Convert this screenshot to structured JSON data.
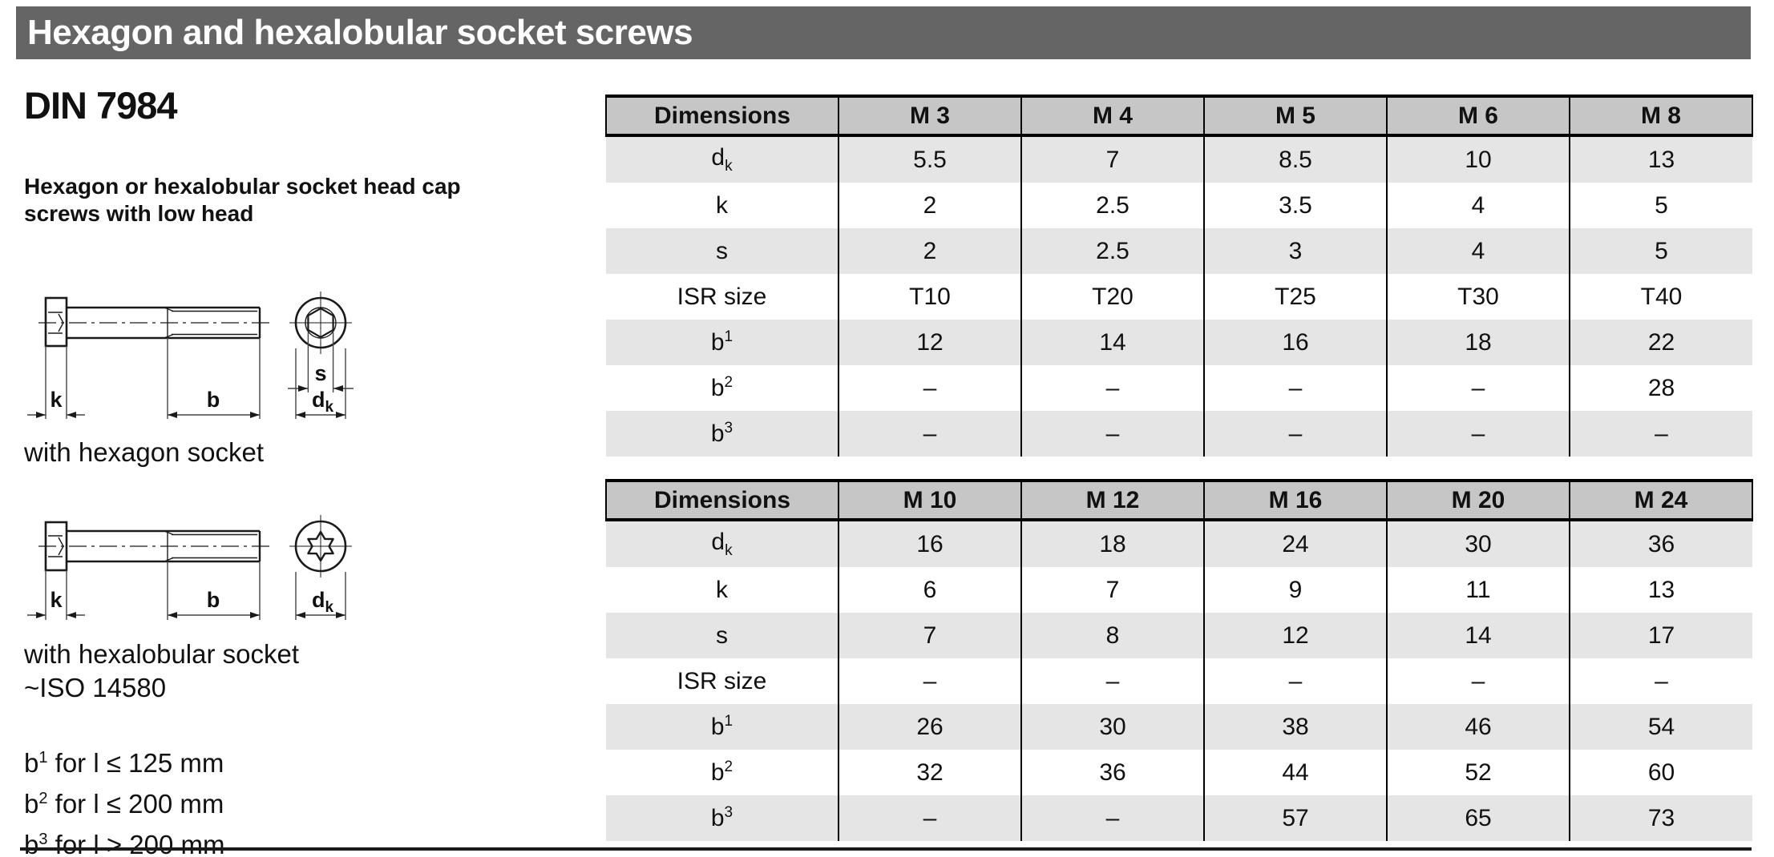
{
  "header": {
    "title": "Hexagon and hexalobular socket screws"
  },
  "left": {
    "standard": "DIN 7984",
    "subtitle_lines": [
      "Hexagon or hexalobular socket head cap",
      "screws with low head"
    ],
    "caption_hex": "with hexagon socket",
    "caption_torx": "with hexalobular socket",
    "caption_torx_iso": "~ISO 14580",
    "footnotes": [
      {
        "base": "b",
        "sup": "1",
        "rest": " for l ≤ 125 mm"
      },
      {
        "base": "b",
        "sup": "2",
        "rest": " for l ≤ 200 mm"
      },
      {
        "base": "b",
        "sup": "3",
        "rest": " for l > 200 mm"
      }
    ]
  },
  "drawing_labels": {
    "k": "k",
    "b": "b",
    "s": "s",
    "dk_base": "d",
    "dk_sub": "k"
  },
  "colors": {
    "header_bar": "#656565",
    "table_header_bg": "#c6c6c6",
    "row_stripe_bg": "#e5e5e5"
  },
  "tables": [
    {
      "columns": [
        "Dimensions",
        "M 3",
        "M 4",
        "M 5",
        "M 6",
        "M 8"
      ],
      "rows": [
        {
          "label": "d",
          "sub": "k",
          "sup": "",
          "values": [
            "5.5",
            "7",
            "8.5",
            "10",
            "13"
          ]
        },
        {
          "label": "k",
          "sub": "",
          "sup": "",
          "values": [
            "2",
            "2.5",
            "3.5",
            "4",
            "5"
          ]
        },
        {
          "label": "s",
          "sub": "",
          "sup": "",
          "values": [
            "2",
            "2.5",
            "3",
            "4",
            "5"
          ]
        },
        {
          "label": "ISR size",
          "sub": "",
          "sup": "",
          "values": [
            "T10",
            "T20",
            "T25",
            "T30",
            "T40"
          ]
        },
        {
          "label": "b",
          "sub": "",
          "sup": "1",
          "values": [
            "12",
            "14",
            "16",
            "18",
            "22"
          ]
        },
        {
          "label": "b",
          "sub": "",
          "sup": "2",
          "values": [
            "–",
            "–",
            "–",
            "–",
            "28"
          ]
        },
        {
          "label": "b",
          "sub": "",
          "sup": "3",
          "values": [
            "–",
            "–",
            "–",
            "–",
            "–"
          ]
        }
      ]
    },
    {
      "columns": [
        "Dimensions",
        "M 10",
        "M 12",
        "M 16",
        "M 20",
        "M 24"
      ],
      "rows": [
        {
          "label": "d",
          "sub": "k",
          "sup": "",
          "values": [
            "16",
            "18",
            "24",
            "30",
            "36"
          ]
        },
        {
          "label": "k",
          "sub": "",
          "sup": "",
          "values": [
            "6",
            "7",
            "9",
            "11",
            "13"
          ]
        },
        {
          "label": "s",
          "sub": "",
          "sup": "",
          "values": [
            "7",
            "8",
            "12",
            "14",
            "17"
          ]
        },
        {
          "label": "ISR size",
          "sub": "",
          "sup": "",
          "values": [
            "–",
            "–",
            "–",
            "–",
            "–"
          ]
        },
        {
          "label": "b",
          "sub": "",
          "sup": "1",
          "values": [
            "26",
            "30",
            "38",
            "46",
            "54"
          ]
        },
        {
          "label": "b",
          "sub": "",
          "sup": "2",
          "values": [
            "32",
            "36",
            "44",
            "52",
            "60"
          ]
        },
        {
          "label": "b",
          "sub": "",
          "sup": "3",
          "values": [
            "–",
            "–",
            "57",
            "65",
            "73"
          ]
        }
      ]
    }
  ]
}
